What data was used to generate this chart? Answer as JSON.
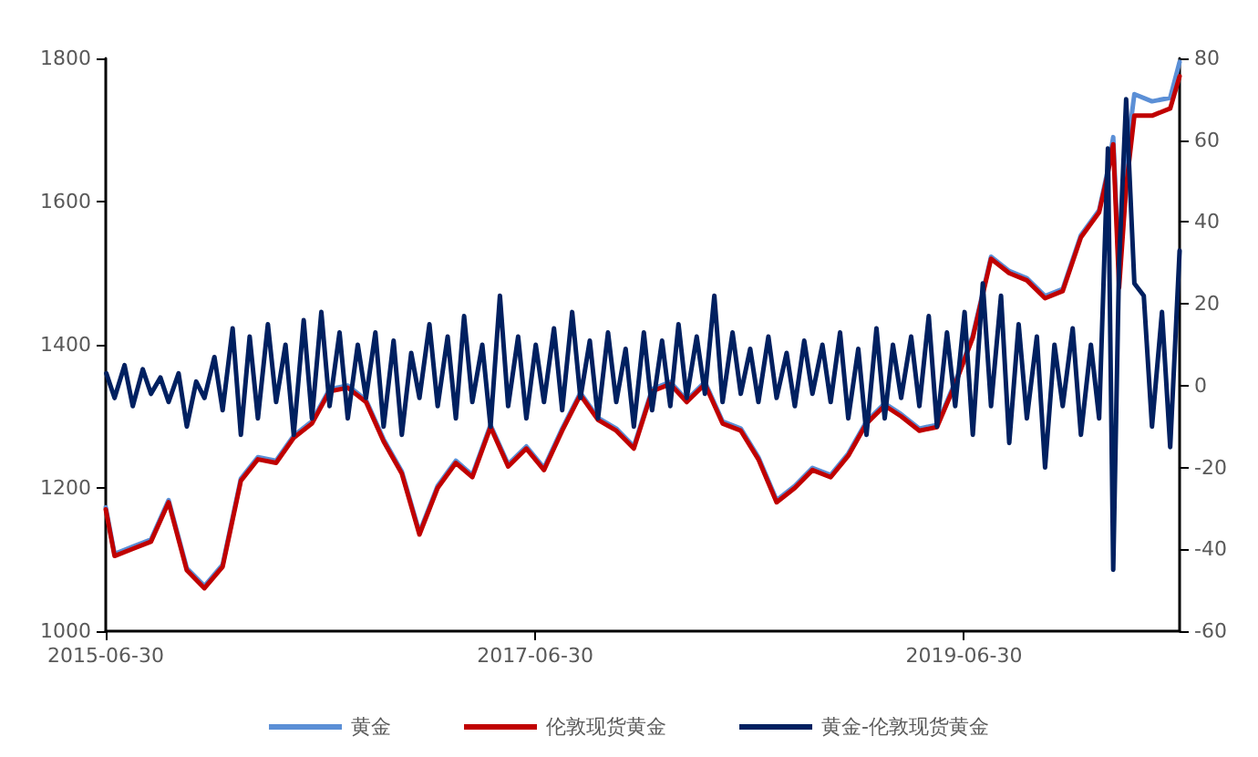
{
  "chart_data": {
    "type": "line",
    "legend": "bottom",
    "grid": false,
    "marker": "none",
    "line_style": "solid",
    "xlim": [
      "2015-06-30",
      "2020-07-01"
    ],
    "xticks": [
      "2015-06-30",
      "2017-06-30",
      "2019-06-30"
    ],
    "ylim": [
      1000,
      1800
    ],
    "yticks": [
      1000,
      1200,
      1400,
      1600,
      1800
    ],
    "y2lim": [
      -60,
      80
    ],
    "y2ticks": [
      -60,
      -40,
      -20,
      0,
      20,
      40,
      60,
      80
    ],
    "series": [
      {
        "name": "黄金",
        "color": "#5b8fd6",
        "x": [
          "2015-06-30",
          "2015-07-15",
          "2015-08-15",
          "2015-09-15",
          "2015-10-15",
          "2015-11-15",
          "2015-12-15",
          "2016-01-15",
          "2016-02-15",
          "2016-03-15",
          "2016-04-15",
          "2016-05-15",
          "2016-06-15",
          "2016-07-15",
          "2016-08-15",
          "2016-09-15",
          "2016-10-15",
          "2016-11-15",
          "2016-12-15",
          "2017-01-15",
          "2017-02-15",
          "2017-03-15",
          "2017-04-15",
          "2017-05-15",
          "2017-06-15",
          "2017-07-15",
          "2017-08-15",
          "2017-09-15",
          "2017-10-15",
          "2017-11-15",
          "2017-12-15",
          "2018-01-15",
          "2018-02-15",
          "2018-03-15",
          "2018-04-15",
          "2018-05-15",
          "2018-06-15",
          "2018-07-15",
          "2018-08-15",
          "2018-09-15",
          "2018-10-15",
          "2018-11-15",
          "2018-12-15",
          "2019-01-15",
          "2019-02-15",
          "2019-03-15",
          "2019-04-15",
          "2019-05-15",
          "2019-06-15",
          "2019-07-15",
          "2019-08-15",
          "2019-09-15",
          "2019-10-15",
          "2019-11-15",
          "2019-12-15",
          "2020-01-15",
          "2020-02-15",
          "2020-03-01",
          "2020-03-10",
          "2020-03-20",
          "2020-04-01",
          "2020-04-15",
          "2020-05-15",
          "2020-06-15",
          "2020-07-01"
        ],
        "values": [
          1173,
          1108,
          1118,
          1128,
          1183,
          1088,
          1063,
          1093,
          1213,
          1243,
          1238,
          1273,
          1293,
          1338,
          1343,
          1323,
          1268,
          1223,
          1138,
          1203,
          1238,
          1218,
          1288,
          1233,
          1258,
          1228,
          1283,
          1333,
          1298,
          1283,
          1258,
          1338,
          1348,
          1323,
          1348,
          1293,
          1283,
          1243,
          1183,
          1203,
          1228,
          1218,
          1248,
          1293,
          1318,
          1303,
          1283,
          1288,
          1348,
          1413,
          1523,
          1503,
          1493,
          1468,
          1478,
          1553,
          1588,
          1645,
          1690,
          1500,
          1660,
          1750,
          1740,
          1745,
          1795
        ]
      },
      {
        "name": "伦敦现货黄金",
        "color": "#c00000",
        "x": [
          "2015-06-30",
          "2015-07-15",
          "2015-08-15",
          "2015-09-15",
          "2015-10-15",
          "2015-11-15",
          "2015-12-15",
          "2016-01-15",
          "2016-02-15",
          "2016-03-15",
          "2016-04-15",
          "2016-05-15",
          "2016-06-15",
          "2016-07-15",
          "2016-08-15",
          "2016-09-15",
          "2016-10-15",
          "2016-11-15",
          "2016-12-15",
          "2017-01-15",
          "2017-02-15",
          "2017-03-15",
          "2017-04-15",
          "2017-05-15",
          "2017-06-15",
          "2017-07-15",
          "2017-08-15",
          "2017-09-15",
          "2017-10-15",
          "2017-11-15",
          "2017-12-15",
          "2018-01-15",
          "2018-02-15",
          "2018-03-15",
          "2018-04-15",
          "2018-05-15",
          "2018-06-15",
          "2018-07-15",
          "2018-08-15",
          "2018-09-15",
          "2018-10-15",
          "2018-11-15",
          "2018-12-15",
          "2019-01-15",
          "2019-02-15",
          "2019-03-15",
          "2019-04-15",
          "2019-05-15",
          "2019-06-15",
          "2019-07-15",
          "2019-08-15",
          "2019-09-15",
          "2019-10-15",
          "2019-11-15",
          "2019-12-15",
          "2020-01-15",
          "2020-02-15",
          "2020-03-01",
          "2020-03-10",
          "2020-03-20",
          "2020-04-01",
          "2020-04-15",
          "2020-05-15",
          "2020-06-15",
          "2020-07-01"
        ],
        "values": [
          1170,
          1105,
          1115,
          1125,
          1180,
          1085,
          1060,
          1090,
          1210,
          1240,
          1235,
          1270,
          1290,
          1335,
          1340,
          1320,
          1265,
          1220,
          1135,
          1200,
          1235,
          1215,
          1285,
          1230,
          1255,
          1225,
          1280,
          1330,
          1295,
          1280,
          1255,
          1335,
          1345,
          1320,
          1345,
          1290,
          1280,
          1240,
          1180,
          1200,
          1225,
          1215,
          1245,
          1290,
          1315,
          1300,
          1280,
          1285,
          1345,
          1410,
          1520,
          1500,
          1490,
          1465,
          1475,
          1550,
          1585,
          1640,
          1680,
          1480,
          1620,
          1720,
          1720,
          1730,
          1775
        ]
      },
      {
        "name": "黄金-伦敦现货黄金",
        "color": "#002060",
        "axis": "y2",
        "x": [
          "2015-07-01",
          "2015-07-15",
          "2015-08-01",
          "2015-08-15",
          "2015-09-01",
          "2015-09-15",
          "2015-10-01",
          "2015-10-15",
          "2015-11-01",
          "2015-11-15",
          "2015-12-01",
          "2015-12-15",
          "2016-01-01",
          "2016-01-15",
          "2016-02-01",
          "2016-02-15",
          "2016-03-01",
          "2016-03-15",
          "2016-04-01",
          "2016-04-15",
          "2016-05-01",
          "2016-05-15",
          "2016-06-01",
          "2016-06-15",
          "2016-07-01",
          "2016-07-15",
          "2016-08-01",
          "2016-08-15",
          "2016-09-01",
          "2016-09-15",
          "2016-10-01",
          "2016-10-15",
          "2016-11-01",
          "2016-11-15",
          "2016-12-01",
          "2016-12-15",
          "2017-01-01",
          "2017-01-15",
          "2017-02-01",
          "2017-02-15",
          "2017-03-01",
          "2017-03-15",
          "2017-04-01",
          "2017-04-15",
          "2017-05-01",
          "2017-05-15",
          "2017-06-01",
          "2017-06-15",
          "2017-07-01",
          "2017-07-15",
          "2017-08-01",
          "2017-08-15",
          "2017-09-01",
          "2017-09-15",
          "2017-10-01",
          "2017-10-15",
          "2017-11-01",
          "2017-11-15",
          "2017-12-01",
          "2017-12-15",
          "2018-01-01",
          "2018-01-15",
          "2018-02-01",
          "2018-02-15",
          "2018-03-01",
          "2018-03-15",
          "2018-04-01",
          "2018-04-15",
          "2018-05-01",
          "2018-05-15",
          "2018-06-01",
          "2018-06-15",
          "2018-07-01",
          "2018-07-15",
          "2018-08-01",
          "2018-08-15",
          "2018-09-01",
          "2018-09-15",
          "2018-10-01",
          "2018-10-15",
          "2018-11-01",
          "2018-11-15",
          "2018-12-01",
          "2018-12-15",
          "2019-01-01",
          "2019-01-15",
          "2019-02-01",
          "2019-02-15",
          "2019-03-01",
          "2019-03-15",
          "2019-04-01",
          "2019-04-15",
          "2019-05-01",
          "2019-05-15",
          "2019-06-01",
          "2019-06-15",
          "2019-07-01",
          "2019-07-15",
          "2019-08-01",
          "2019-08-15",
          "2019-09-01",
          "2019-09-15",
          "2019-10-01",
          "2019-10-15",
          "2019-11-01",
          "2019-11-15",
          "2019-12-01",
          "2019-12-15",
          "2020-01-01",
          "2020-01-15",
          "2020-02-01",
          "2020-02-15",
          "2020-03-01",
          "2020-03-10",
          "2020-03-20",
          "2020-04-01",
          "2020-04-15",
          "2020-05-01",
          "2020-05-15",
          "2020-06-01",
          "2020-06-15",
          "2020-07-01"
        ],
        "values": [
          3,
          -3,
          5,
          -5,
          4,
          -2,
          2,
          -4,
          3,
          -10,
          1,
          -3,
          7,
          -6,
          14,
          -12,
          12,
          -8,
          15,
          -4,
          10,
          -12,
          16,
          -8,
          18,
          -5,
          13,
          -8,
          10,
          -3,
          13,
          -10,
          11,
          -12,
          8,
          -3,
          15,
          -5,
          12,
          -8,
          17,
          -4,
          10,
          -10,
          22,
          -5,
          12,
          -8,
          10,
          -4,
          14,
          -6,
          18,
          -3,
          11,
          -8,
          13,
          -4,
          9,
          -10,
          13,
          -6,
          11,
          -5,
          15,
          -3,
          12,
          -2,
          22,
          -4,
          13,
          -2,
          9,
          -4,
          12,
          -3,
          8,
          -5,
          11,
          -2,
          10,
          -4,
          13,
          -8,
          9,
          -12,
          14,
          -8,
          10,
          -3,
          12,
          -5,
          17,
          -10,
          13,
          -5,
          18,
          -12,
          25,
          -5,
          22,
          -14,
          15,
          -8,
          12,
          -20,
          10,
          -5,
          14,
          -12,
          10,
          -8,
          58,
          -45,
          30,
          70,
          25,
          22,
          -10,
          18,
          -15,
          33
        ]
      }
    ]
  }
}
